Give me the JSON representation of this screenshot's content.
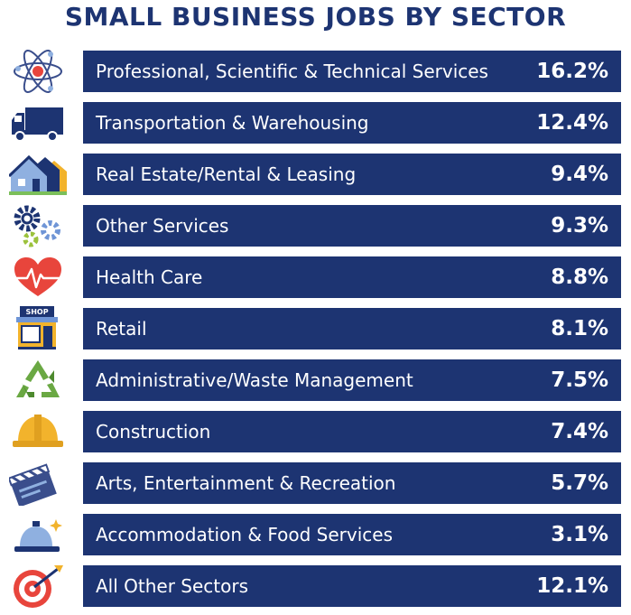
{
  "chart_data": {
    "type": "table",
    "title": "SMALL BUSINESS JOBS BY SECTOR",
    "rows": [
      {
        "label": "Professional, Scientific & Technical Services",
        "value": "16.2%",
        "icon": "atom-icon"
      },
      {
        "label": "Transportation & Warehousing",
        "value": "12.4%",
        "icon": "truck-icon"
      },
      {
        "label": "Real Estate/Rental & Leasing",
        "value": "9.4%",
        "icon": "houses-icon"
      },
      {
        "label": "Other Services",
        "value": "9.3%",
        "icon": "gears-icon"
      },
      {
        "label": "Health Care",
        "value": "8.8%",
        "icon": "heart-pulse-icon"
      },
      {
        "label": "Retail",
        "value": "8.1%",
        "icon": "shop-icon"
      },
      {
        "label": "Administrative/Waste Management",
        "value": "7.5%",
        "icon": "recycle-icon"
      },
      {
        "label": "Construction",
        "value": "7.4%",
        "icon": "hard-hat-icon"
      },
      {
        "label": "Arts, Entertainment & Recreation",
        "value": "5.7%",
        "icon": "clapperboard-icon"
      },
      {
        "label": "Accommodation & Food Services",
        "value": "3.1%",
        "icon": "service-bell-icon"
      },
      {
        "label": "All Other Sectors",
        "value": "12.1%",
        "icon": "target-icon"
      }
    ]
  },
  "colors": {
    "bar": "#1d3472",
    "title": "#1d3472",
    "text": "#ffffff"
  }
}
